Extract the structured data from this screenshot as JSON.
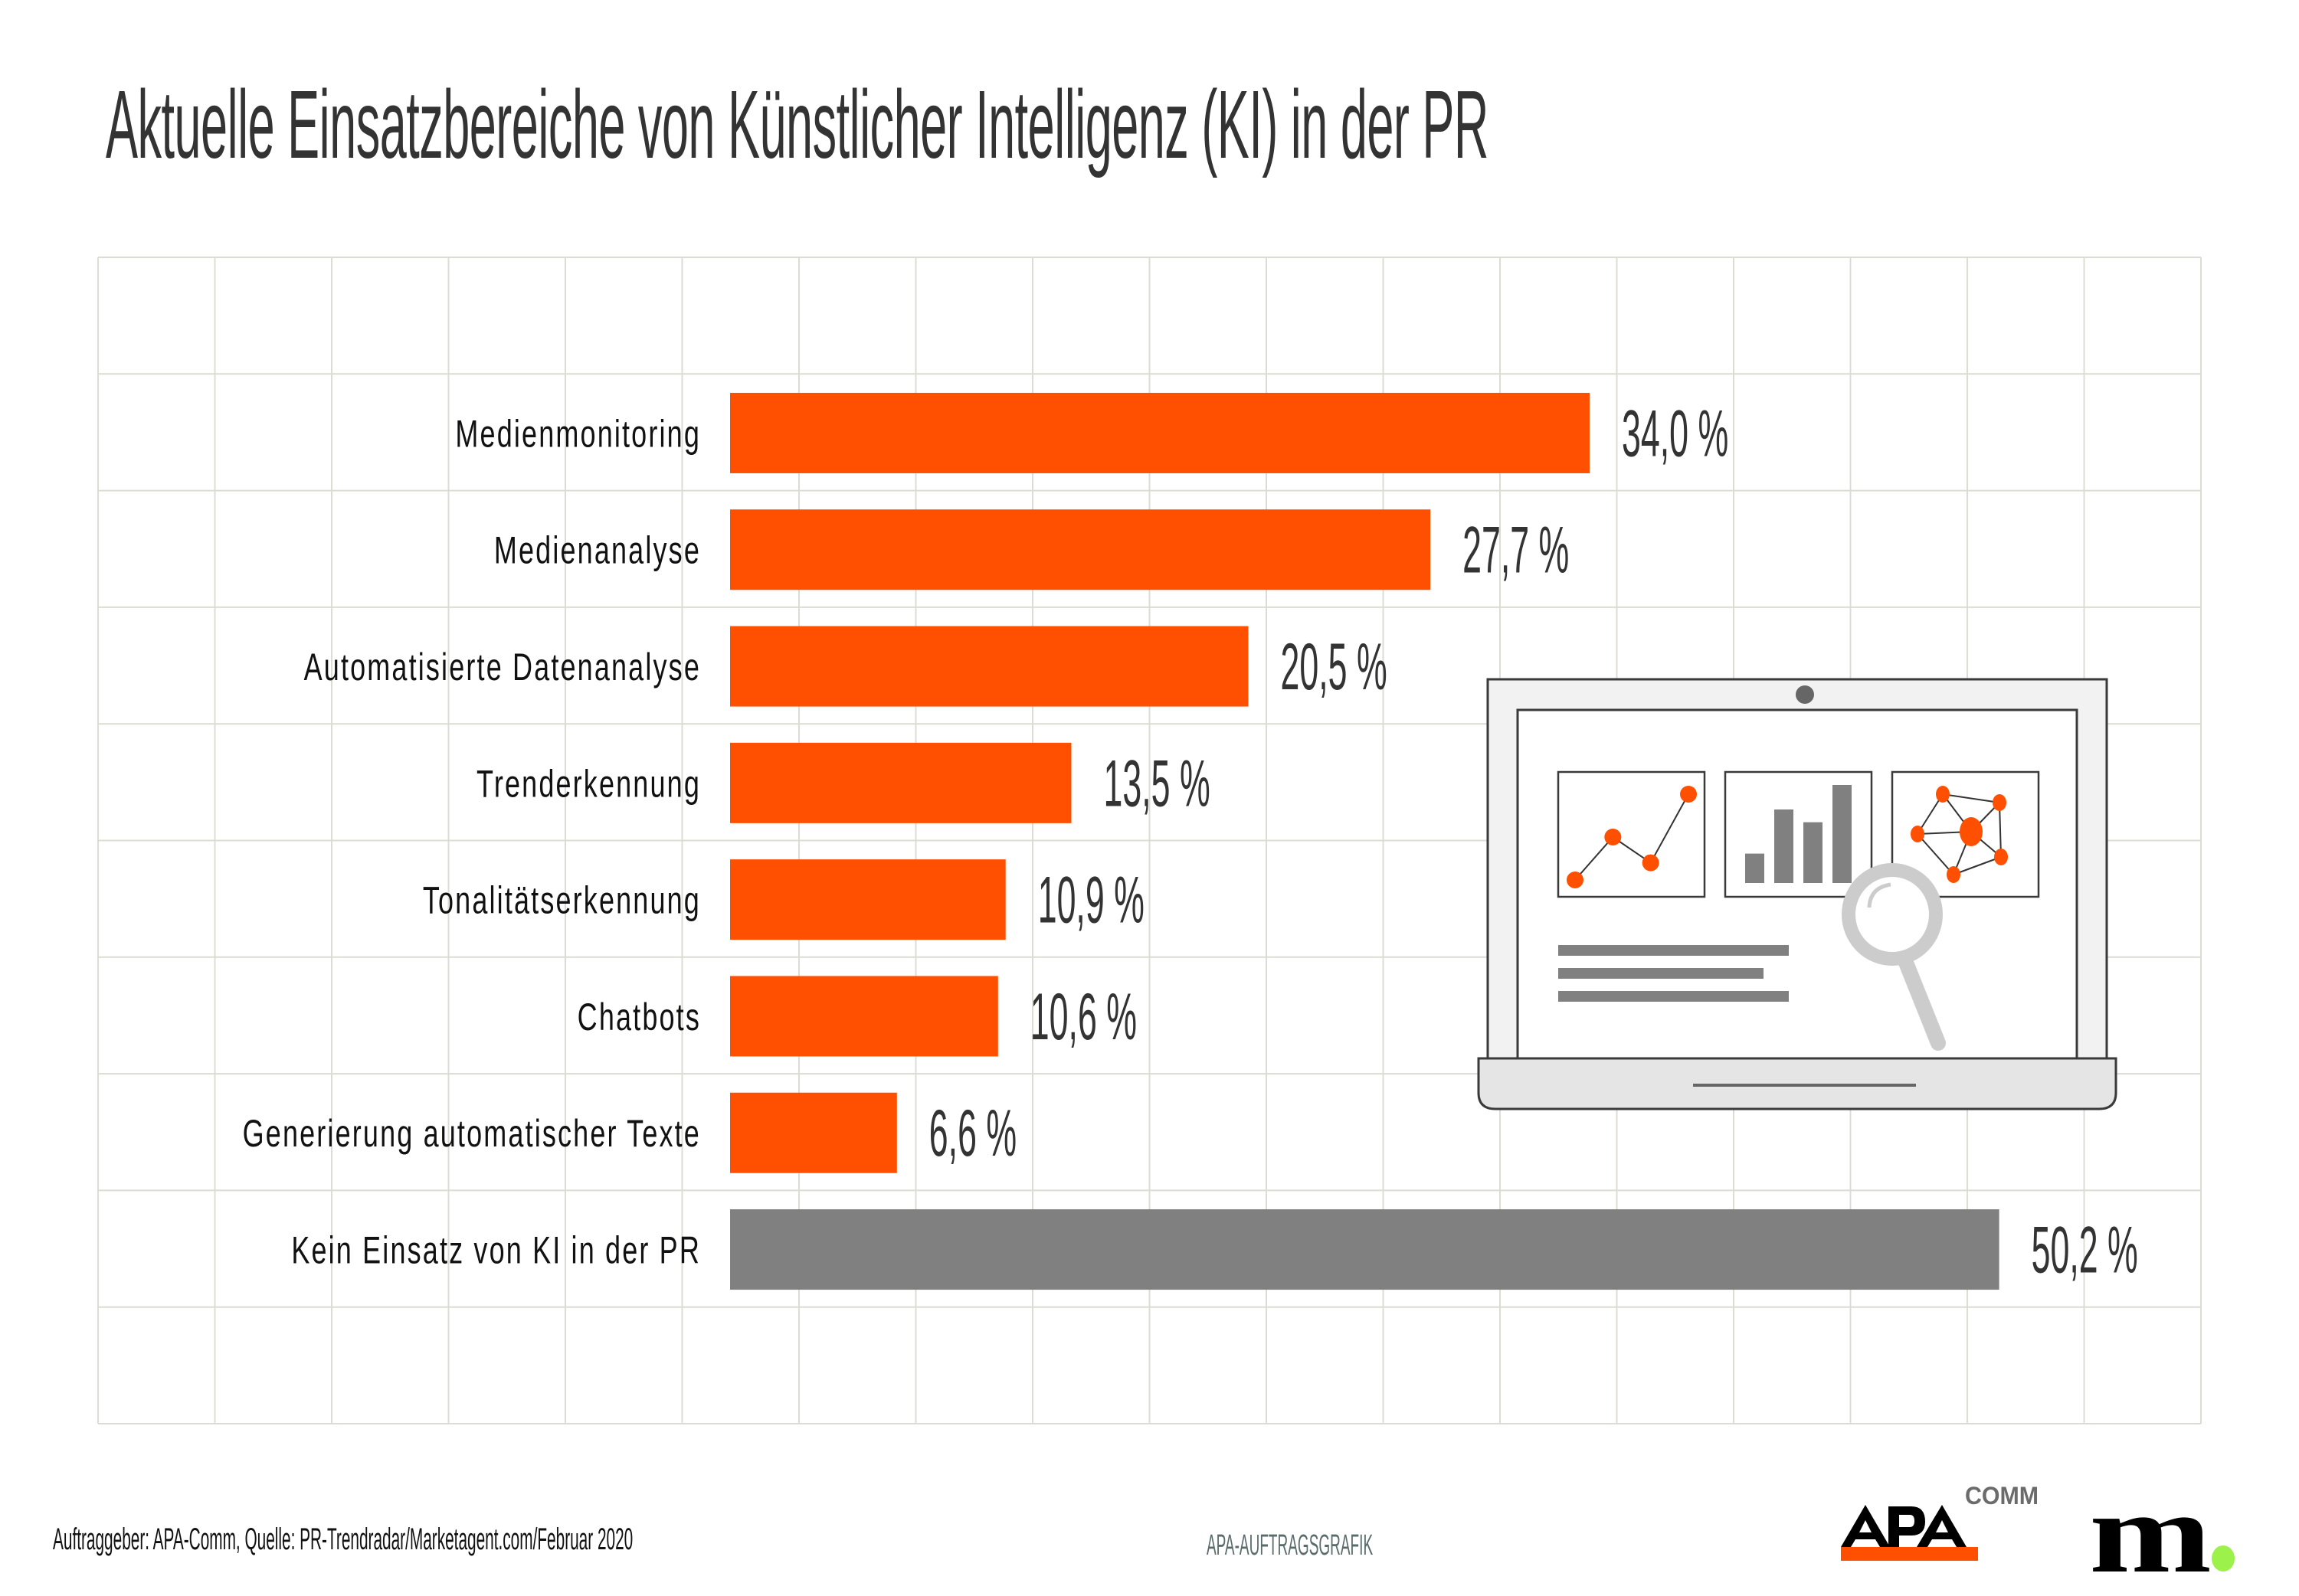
{
  "title": "Aktuelle Einsatzbereiche von Künstlicher Intelligenz (KI) in der PR",
  "colors": {
    "bar_primary": "#ff4f00",
    "bar_secondary": "#808080",
    "grid": "#dcdcd4",
    "text": "#333333",
    "accent_green": "#9cf24a"
  },
  "chart_data": {
    "type": "bar",
    "orientation": "horizontal",
    "title": "Aktuelle Einsatzbereiche von Künstlicher Intelligenz (KI) in der PR",
    "xlabel": "",
    "ylabel": "",
    "unit": "%",
    "xlim": [
      0,
      50.2
    ],
    "grid": true,
    "categories": [
      "Medienmonitoring",
      "Medienanalyse",
      "Automatisierte Datenanalyse",
      "Trenderkennung",
      "Tonalitätserkennung",
      "Chatbots",
      "Generierung automatischer Texte",
      "Kein Einsatz von KI in der PR"
    ],
    "values": [
      34.0,
      27.7,
      20.5,
      13.5,
      10.9,
      10.6,
      6.6,
      50.2
    ],
    "value_labels": [
      "34,0 %",
      "27,7 %",
      "20,5 %",
      "13,5 %",
      "10,9 %",
      "10,6 %",
      "6,6 %",
      "50,2 %"
    ],
    "bar_color_keys": [
      "bar_primary",
      "bar_primary",
      "bar_primary",
      "bar_primary",
      "bar_primary",
      "bar_primary",
      "bar_primary",
      "bar_secondary"
    ]
  },
  "illustration": {
    "name": "laptop-analytics-illustration",
    "mini_line_chart": [
      0.2,
      0.45,
      0.3,
      0.7
    ],
    "mini_bar_chart": [
      0.3,
      0.75,
      0.62,
      1.0
    ]
  },
  "footer": {
    "source": "Auftraggeber: APA-Comm, Quelle: PR-Trendradar/Marketagent.com/Februar 2020",
    "center_label": "APA-AUFTRAGSGRAFIK",
    "logo_apa_text": "APA",
    "logo_apa_sub": "COMM",
    "logo_m_text": "m"
  }
}
